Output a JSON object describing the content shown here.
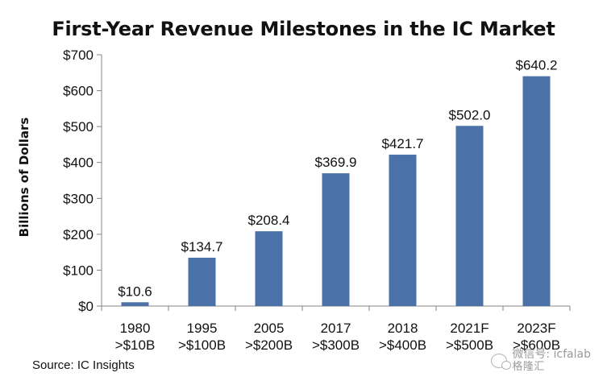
{
  "chart_data": {
    "type": "bar",
    "title": "First-Year Revenue Milestones in the IC Market",
    "ylabel": "Billions of Dollars",
    "xlabel": "",
    "categories": [
      [
        "1980",
        ">$10B"
      ],
      [
        "1995",
        ">$100B"
      ],
      [
        "2005",
        ">$200B"
      ],
      [
        "2017",
        ">$300B"
      ],
      [
        "2018",
        ">$400B"
      ],
      [
        "2021F",
        ">$500B"
      ],
      [
        "2023F",
        ">$600B"
      ]
    ],
    "values": [
      10.6,
      134.7,
      208.4,
      369.9,
      421.7,
      502.0,
      640.2
    ],
    "value_labels": [
      "$10.6",
      "$134.7",
      "$208.4",
      "$369.9",
      "$421.7",
      "$502.0",
      "$640.2"
    ],
    "ylim": [
      0,
      700
    ],
    "yticks": [
      0,
      100,
      200,
      300,
      400,
      500,
      600,
      700
    ],
    "ytick_labels": [
      "$0",
      "$100",
      "$200",
      "$300",
      "$400",
      "$500",
      "$600",
      "$700"
    ],
    "grid": false,
    "legend": "none",
    "bar_color": "#4a72a8"
  },
  "source_note": "Source:  IC Insights",
  "watermark": {
    "handle": "微信号: icfalab",
    "logo_text": "格隆汇"
  }
}
